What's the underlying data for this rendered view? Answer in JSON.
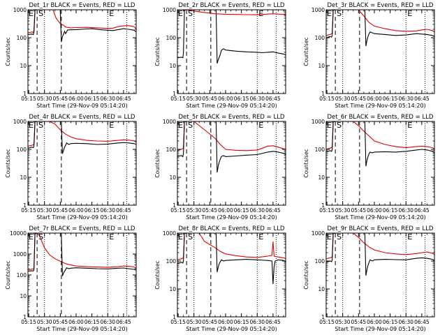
{
  "figure": {
    "panel_title_suffix": "BLACK = Events, RED = LLD",
    "xlabel": "Start Time (29-Nov-09 05:14:20)",
    "ylabel": "Counts/sec",
    "xticks": [
      "05:15",
      "05:30",
      "05:45",
      "06:00",
      "06:15",
      "06:30",
      "06:45"
    ],
    "xtick_minutes": [
      15,
      30,
      45,
      60,
      75,
      90,
      105
    ],
    "yticks": [
      "1",
      "10",
      "100",
      "1000"
    ],
    "ytick_values": [
      1,
      10,
      100,
      1000
    ],
    "marker_E": "E",
    "marker_S": "S",
    "colors": {
      "events": "#000000",
      "lld": "#e00000",
      "axes": "#000000"
    }
  },
  "chart_data": [
    {
      "type": "line",
      "title": "Det_1r",
      "yscale": "log",
      "ylim": [
        1,
        1000
      ],
      "xlim": [
        14.3,
        117
      ],
      "dashed_lines_min": [
        23,
        46
      ],
      "dotted_lines_min": [
        30,
        90,
        108
      ],
      "series": [
        {
          "name": "BLACK = Events",
          "x": [
            14.3,
            18,
            19.5,
            20,
            21,
            22.5,
            38,
            39,
            40,
            41,
            43,
            45,
            46,
            47,
            48,
            49,
            50,
            52,
            60,
            70,
            75,
            85,
            95,
            100,
            105,
            110,
            115,
            117
          ],
          "y": [
            130,
            135,
            130,
            155,
            950,
            1000,
            1000,
            1000,
            1000,
            1000,
            1000,
            1000,
            70,
            110,
            130,
            170,
            140,
            190,
            195,
            205,
            210,
            190,
            180,
            195,
            210,
            200,
            185,
            160
          ]
        },
        {
          "name": "RED = LLD",
          "x": [
            14.3,
            18,
            19.5,
            20,
            21,
            22.5,
            38,
            41,
            45,
            48,
            50,
            55,
            60,
            70,
            80,
            90,
            95,
            100,
            105,
            110,
            115,
            117
          ],
          "y": [
            150,
            160,
            155,
            180,
            1000,
            1000,
            1000,
            500,
            320,
            280,
            240,
            225,
            230,
            235,
            225,
            215,
            220,
            250,
            265,
            270,
            245,
            210
          ]
        }
      ]
    },
    {
      "type": "line",
      "title": "Det_2r",
      "yscale": "log",
      "ylim": [
        1,
        1000
      ],
      "xlim": [
        14.3,
        117
      ],
      "dashed_lines_min": [
        23,
        46
      ],
      "dotted_lines_min": [
        30,
        90,
        108
      ],
      "series": [
        {
          "name": "BLACK = Events",
          "x": [
            14.3,
            18,
            19.5,
            20,
            21,
            22.5,
            50,
            51,
            52,
            53,
            54,
            55,
            56,
            58,
            60,
            70,
            80,
            90,
            95,
            100,
            105,
            110,
            115,
            117
          ],
          "y": [
            19,
            20,
            19,
            28,
            1000,
            1000,
            1000,
            1000,
            12,
            16,
            20,
            25,
            35,
            40,
            36,
            33,
            31,
            30,
            29,
            30,
            31,
            28,
            26,
            24
          ]
        },
        {
          "name": "RED = LLD",
          "x": [
            14.3,
            18,
            20,
            21,
            22,
            23,
            30,
            40,
            50,
            60,
            70,
            80,
            90,
            95,
            100,
            105,
            110,
            115,
            117
          ],
          "y": [
            1000,
            1000,
            1000,
            900,
            1000,
            1000,
            900,
            800,
            720,
            690,
            680,
            670,
            660,
            680,
            700,
            720,
            700,
            680,
            650
          ]
        }
      ]
    },
    {
      "type": "line",
      "title": "Det_3r",
      "yscale": "log",
      "ylim": [
        1,
        1000
      ],
      "xlim": [
        14.3,
        117
      ],
      "dashed_lines_min": [
        23,
        46
      ],
      "dotted_lines_min": [
        30,
        90,
        108
      ],
      "series": [
        {
          "name": "BLACK = Events",
          "x": [
            14.3,
            18,
            19.5,
            20,
            21,
            22.5,
            50,
            51,
            52,
            53,
            54,
            55,
            56,
            58,
            60,
            70,
            80,
            90,
            100,
            110,
            115,
            117
          ],
          "y": [
            100,
            110,
            105,
            120,
            950,
            1000,
            1000,
            1000,
            50,
            80,
            110,
            140,
            160,
            150,
            140,
            130,
            120,
            125,
            140,
            130,
            120,
            110
          ]
        },
        {
          "name": "RED = LLD",
          "x": [
            14.3,
            18,
            20,
            21,
            22.5,
            45,
            50,
            55,
            60,
            70,
            80,
            90,
            100,
            105,
            110,
            115,
            117
          ],
          "y": [
            120,
            130,
            140,
            1000,
            1000,
            1000,
            600,
            350,
            260,
            210,
            180,
            170,
            175,
            190,
            200,
            180,
            160
          ]
        }
      ]
    },
    {
      "type": "line",
      "title": "Det_4r",
      "yscale": "log",
      "ylim": [
        1,
        1000
      ],
      "xlim": [
        14.3,
        117
      ],
      "dashed_lines_min": [
        23,
        46
      ],
      "dotted_lines_min": [
        30,
        90,
        108
      ],
      "series": [
        {
          "name": "BLACK = Events",
          "x": [
            14.3,
            18,
            19.5,
            20,
            21,
            22.5,
            45,
            46,
            47,
            48,
            49,
            50,
            51,
            53,
            55,
            60,
            70,
            80,
            90,
            100,
            105,
            110,
            115,
            117
          ],
          "y": [
            110,
            120,
            115,
            130,
            950,
            1000,
            1000,
            1000,
            70,
            90,
            120,
            140,
            170,
            150,
            160,
            165,
            160,
            150,
            155,
            170,
            175,
            170,
            160,
            150
          ]
        },
        {
          "name": "RED = LLD",
          "x": [
            14.3,
            18,
            20,
            21,
            22.5,
            35,
            40,
            45,
            50,
            55,
            60,
            70,
            80,
            90,
            100,
            105,
            110,
            115,
            117
          ],
          "y": [
            130,
            140,
            150,
            1000,
            1000,
            1000,
            800,
            500,
            350,
            280,
            240,
            210,
            200,
            195,
            210,
            220,
            215,
            200,
            180
          ]
        }
      ]
    },
    {
      "type": "line",
      "title": "Det_5r",
      "yscale": "log",
      "ylim": [
        1,
        1000
      ],
      "xlim": [
        14.3,
        117
      ],
      "dashed_lines_min": [
        23,
        46
      ],
      "dotted_lines_min": [
        30,
        90,
        108
      ],
      "series": [
        {
          "name": "BLACK = Events",
          "x": [
            14.3,
            18,
            19.5,
            20,
            21,
            22.5,
            50,
            51,
            52,
            53,
            54,
            55,
            56,
            58,
            60,
            70,
            80,
            90,
            100,
            105,
            110,
            115,
            117
          ],
          "y": [
            55,
            60,
            55,
            70,
            950,
            1000,
            1000,
            1000,
            15,
            25,
            35,
            45,
            55,
            60,
            55,
            58,
            62,
            65,
            80,
            85,
            80,
            72,
            65
          ]
        },
        {
          "name": "RED = LLD",
          "x": [
            14.3,
            18,
            20,
            21,
            22.5,
            30,
            40,
            50,
            55,
            60,
            70,
            80,
            90,
            95,
            100,
            105,
            110,
            115,
            117
          ],
          "y": [
            90,
            100,
            110,
            1000,
            1000,
            1000,
            500,
            250,
            150,
            100,
            92,
            90,
            95,
            110,
            130,
            135,
            120,
            105,
            100
          ]
        }
      ]
    },
    {
      "type": "line",
      "title": "Det_6r",
      "yscale": "log",
      "ylim": [
        1,
        1000
      ],
      "xlim": [
        14.3,
        117
      ],
      "dashed_lines_min": [
        23,
        46
      ],
      "dotted_lines_min": [
        30,
        90,
        108
      ],
      "series": [
        {
          "name": "BLACK = Events",
          "x": [
            14.3,
            18,
            19.5,
            20,
            21,
            22.5,
            50,
            51,
            52,
            53,
            54,
            55,
            56,
            58,
            60,
            70,
            80,
            90,
            100,
            105,
            110,
            115,
            117
          ],
          "y": [
            80,
            90,
            85,
            100,
            950,
            1000,
            1000,
            1000,
            25,
            40,
            55,
            70,
            80,
            75,
            80,
            82,
            80,
            85,
            95,
            100,
            95,
            85,
            75
          ]
        },
        {
          "name": "RED = LLD",
          "x": [
            14.3,
            18,
            20,
            21,
            22.5,
            40,
            45,
            50,
            55,
            60,
            70,
            80,
            90,
            100,
            105,
            110,
            115,
            117
          ],
          "y": [
            100,
            110,
            120,
            1000,
            1000,
            1000,
            700,
            450,
            300,
            200,
            150,
            125,
            115,
            125,
            130,
            125,
            115,
            105
          ]
        }
      ]
    },
    {
      "type": "line",
      "title": "Det_7r",
      "yscale": "log",
      "ylim": [
        1,
        10000
      ],
      "xlim": [
        14.3,
        117
      ],
      "dashed_lines_min": [
        23,
        46
      ],
      "dotted_lines_min": [
        30,
        90,
        108
      ],
      "series": [
        {
          "name": "BLACK = Events",
          "x": [
            14.3,
            18,
            19.5,
            20,
            21,
            22.5,
            45,
            46,
            47,
            48,
            49,
            50,
            51,
            53,
            55,
            60,
            70,
            80,
            90,
            100,
            105,
            110,
            115,
            117
          ],
          "y": [
            150,
            160,
            155,
            170,
            9000,
            10000,
            10000,
            10000,
            90,
            120,
            150,
            180,
            220,
            200,
            210,
            220,
            210,
            200,
            195,
            210,
            215,
            200,
            185,
            170
          ]
        },
        {
          "name": "RED = LLD",
          "x": [
            14.3,
            18,
            20,
            21,
            22.5,
            25,
            30,
            35,
            40,
            45,
            50,
            55,
            60,
            70,
            80,
            90,
            100,
            105,
            110,
            115,
            117
          ],
          "y": [
            170,
            190,
            200,
            10000,
            10000,
            8000,
            2000,
            900,
            600,
            450,
            350,
            300,
            270,
            250,
            240,
            235,
            250,
            270,
            260,
            240,
            210
          ]
        }
      ]
    },
    {
      "type": "line",
      "title": "Det_8r",
      "yscale": "log",
      "ylim": [
        1,
        1000
      ],
      "xlim": [
        14.3,
        117
      ],
      "dashed_lines_min": [
        23,
        46
      ],
      "dotted_lines_min": [
        30,
        90,
        108
      ],
      "series": [
        {
          "name": "BLACK = Events",
          "x": [
            14.3,
            18,
            19.5,
            20,
            21,
            22.5,
            50,
            51,
            52,
            53,
            54,
            55,
            56,
            58,
            60,
            70,
            80,
            90,
            100,
            104,
            105,
            106,
            107,
            110,
            115,
            117
          ],
          "y": [
            80,
            90,
            85,
            100,
            950,
            1000,
            1000,
            1000,
            40,
            60,
            80,
            95,
            110,
            100,
            105,
            110,
            115,
            110,
            105,
            100,
            15,
            60,
            100,
            110,
            105,
            95
          ]
        },
        {
          "name": "RED = LLD",
          "x": [
            14.3,
            18,
            20,
            21,
            22.5,
            35,
            40,
            50,
            55,
            60,
            70,
            80,
            90,
            100,
            104,
            105,
            106,
            107,
            110,
            115,
            117
          ],
          "y": [
            110,
            120,
            130,
            1000,
            1000,
            1000,
            500,
            300,
            220,
            180,
            155,
            140,
            135,
            150,
            160,
            500,
            150,
            145,
            140,
            130,
            120
          ]
        }
      ]
    },
    {
      "type": "line",
      "title": "Det_9r",
      "yscale": "log",
      "ylim": [
        1,
        1000
      ],
      "xlim": [
        14.3,
        117
      ],
      "dashed_lines_min": [
        23,
        46
      ],
      "dotted_lines_min": [
        30,
        90,
        108
      ],
      "series": [
        {
          "name": "BLACK = Events",
          "x": [
            14.3,
            18,
            19.5,
            20,
            21,
            22.5,
            50,
            51,
            52,
            53,
            54,
            55,
            56,
            58,
            60,
            70,
            80,
            90,
            100,
            105,
            110,
            115,
            117
          ],
          "y": [
            90,
            100,
            95,
            110,
            950,
            1000,
            1000,
            1000,
            30,
            50,
            70,
            90,
            110,
            100,
            110,
            115,
            112,
            110,
            125,
            130,
            125,
            115,
            105
          ]
        },
        {
          "name": "RED = LLD",
          "x": [
            14.3,
            18,
            20,
            21,
            22.5,
            40,
            45,
            50,
            55,
            60,
            70,
            80,
            90,
            100,
            105,
            110,
            115,
            117
          ],
          "y": [
            120,
            130,
            140,
            1000,
            1000,
            1000,
            700,
            450,
            320,
            250,
            200,
            180,
            170,
            185,
            200,
            210,
            190,
            170
          ]
        }
      ]
    }
  ]
}
